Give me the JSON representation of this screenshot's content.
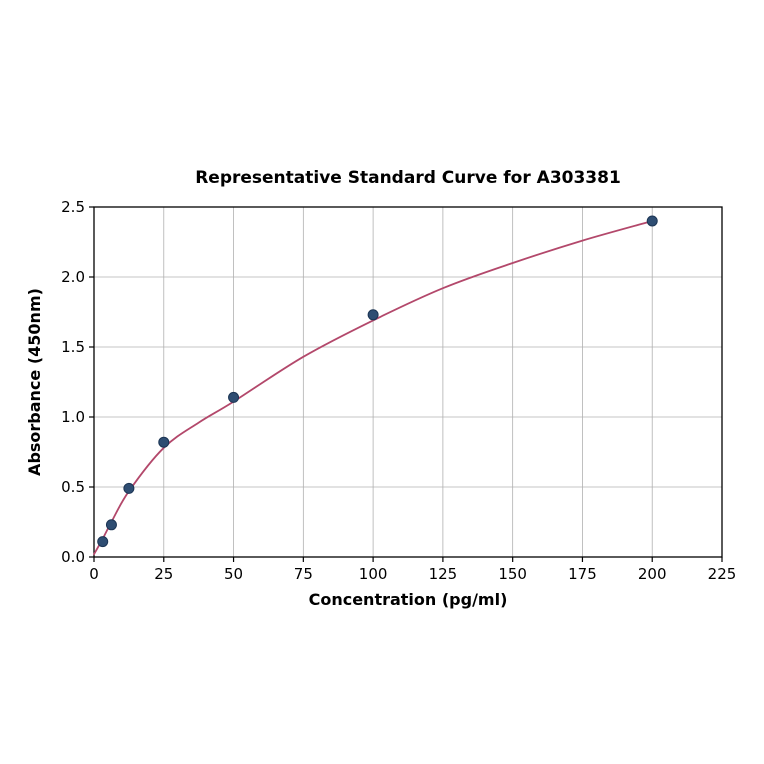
{
  "chart_data": {
    "type": "scatter",
    "title": "Representative Standard Curve for A303381",
    "xlabel": "Concentration (pg/ml)",
    "ylabel": "Absorbance (450nm)",
    "xlim": [
      0,
      225
    ],
    "ylim": [
      0,
      2.5
    ],
    "grid": true,
    "legend": "none",
    "xticks": [
      {
        "value": 0,
        "label": "0"
      },
      {
        "value": 25,
        "label": "25"
      },
      {
        "value": 50,
        "label": "50"
      },
      {
        "value": 75,
        "label": "75"
      },
      {
        "value": 100,
        "label": "100"
      },
      {
        "value": 125,
        "label": "125"
      },
      {
        "value": 150,
        "label": "150"
      },
      {
        "value": 175,
        "label": "175"
      },
      {
        "value": 200,
        "label": "200"
      },
      {
        "value": 225,
        "label": "225"
      }
    ],
    "yticks": [
      {
        "value": 0.0,
        "label": "0.0"
      },
      {
        "value": 0.5,
        "label": "0.5"
      },
      {
        "value": 1.0,
        "label": "1.0"
      },
      {
        "value": 1.5,
        "label": "1.5"
      },
      {
        "value": 2.0,
        "label": "2.0"
      },
      {
        "value": 2.5,
        "label": "2.5"
      }
    ],
    "points": [
      {
        "x": 3.125,
        "y": 0.11
      },
      {
        "x": 6.25,
        "y": 0.23
      },
      {
        "x": 12.5,
        "y": 0.49
      },
      {
        "x": 25,
        "y": 0.82
      },
      {
        "x": 50,
        "y": 1.14
      },
      {
        "x": 100,
        "y": 1.73
      },
      {
        "x": 200,
        "y": 2.4
      }
    ],
    "curve": [
      {
        "x": 0,
        "y": 0.02
      },
      {
        "x": 3.125,
        "y": 0.13
      },
      {
        "x": 6.25,
        "y": 0.25
      },
      {
        "x": 12.5,
        "y": 0.47
      },
      {
        "x": 25,
        "y": 0.78
      },
      {
        "x": 37.5,
        "y": 0.96
      },
      {
        "x": 50,
        "y": 1.11
      },
      {
        "x": 75,
        "y": 1.43
      },
      {
        "x": 100,
        "y": 1.69
      },
      {
        "x": 125,
        "y": 1.92
      },
      {
        "x": 150,
        "y": 2.1
      },
      {
        "x": 175,
        "y": 2.26
      },
      {
        "x": 200,
        "y": 2.4
      }
    ],
    "colors": {
      "curve": "#b3486b",
      "point_fill": "#2e4d72",
      "point_stroke": "#1c3554",
      "grid": "#b0b0b0",
      "axis": "#000000",
      "background": "#ffffff"
    }
  }
}
